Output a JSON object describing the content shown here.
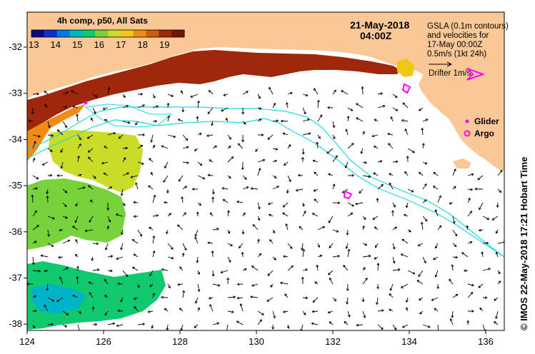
{
  "title": {
    "date": "21-May-2018",
    "time": "04:00Z"
  },
  "colorbar": {
    "title": "4h comp, p50, All Sats",
    "ticks": [
      "13",
      "14",
      "15",
      "16",
      "17",
      "18",
      "19"
    ],
    "colors": [
      "#0a0a78",
      "#1030c8",
      "#0078e6",
      "#00b4c8",
      "#10c86e",
      "#78d23c",
      "#c8dc28",
      "#f0c814",
      "#f08c14",
      "#d25a0a",
      "#a0280a",
      "#781400"
    ]
  },
  "legend": {
    "gsla_lines": [
      "GSLA (0.1m contours)",
      "and velocities for",
      "17-May 00:00Z",
      "0.5m/s (1kt 24h)"
    ],
    "drifter_label": "Drifter 1m/s",
    "glider_label": "Glider",
    "argo_label": "Argo",
    "accent_magenta": "#ff00ff"
  },
  "axes": {
    "x_ticks": [
      "124",
      "126",
      "128",
      "130",
      "132",
      "134",
      "136"
    ],
    "y_ticks": [
      "-32",
      "-33",
      "-34",
      "-35",
      "-36",
      "-37",
      "-38"
    ]
  },
  "land_color": "#fac896",
  "credit": "© IMOS 22-May-2018 17:21 Hobart Time"
}
